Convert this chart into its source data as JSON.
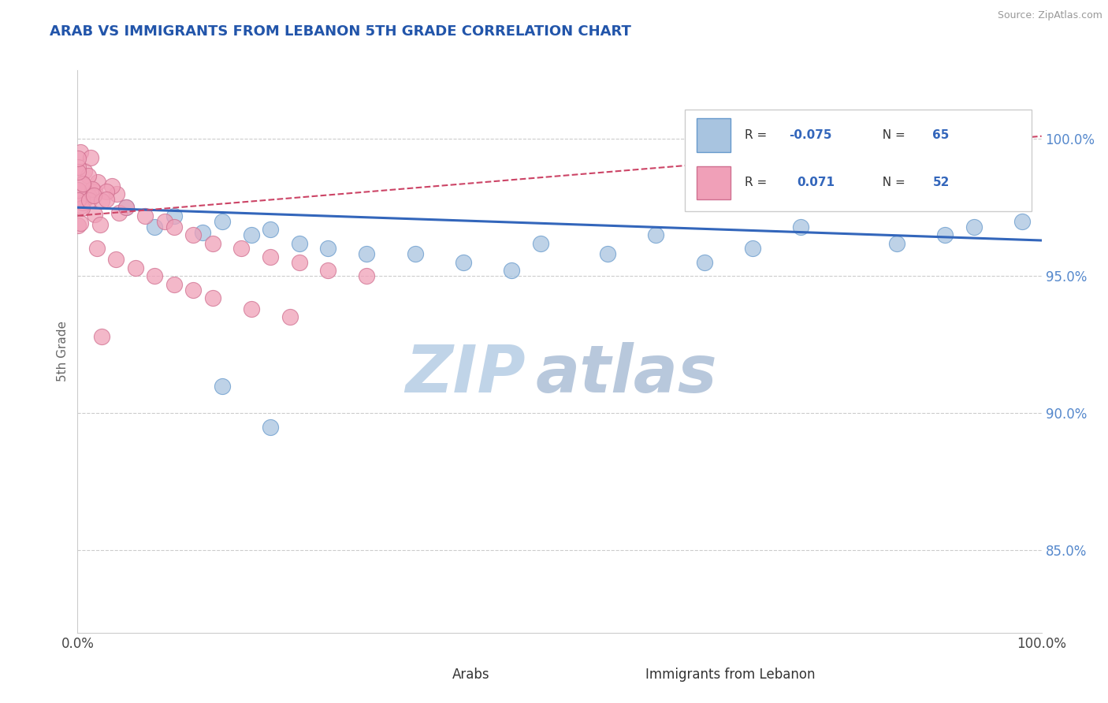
{
  "title": "ARAB VS IMMIGRANTS FROM LEBANON 5TH GRADE CORRELATION CHART",
  "source": "Source: ZipAtlas.com",
  "ylabel": "5th Grade",
  "xlim": [
    0.0,
    1.0
  ],
  "ylim": [
    0.82,
    1.025
  ],
  "ytick_vals": [
    0.85,
    0.9,
    0.95,
    1.0
  ],
  "ytick_labels": [
    "85.0%",
    "90.0%",
    "95.0%",
    "100.0%"
  ],
  "xtick_vals": [
    0.0,
    1.0
  ],
  "xtick_labels": [
    "0.0%",
    "100.0%"
  ],
  "arab_color": "#a8c4e0",
  "arab_edge_color": "#6699cc",
  "leb_color": "#f0a0b8",
  "leb_edge_color": "#d07090",
  "trend_arab_color": "#3366bb",
  "trend_leb_color": "#cc4466",
  "right_axis_color": "#5588cc",
  "watermark_zip_color": "#c0d4e8",
  "watermark_atlas_color": "#b8c8dc",
  "title_color": "#2255aa",
  "background_color": "#ffffff",
  "legend_r_arab": "R = ",
  "legend_v_arab": "-0.075",
  "legend_n_arab": "N = 65",
  "legend_r_leb": "R =  ",
  "legend_v_leb": "0.071",
  "legend_n_leb": "N = 52",
  "arab_trend_x0": 0.0,
  "arab_trend_y0": 0.975,
  "arab_trend_x1": 1.0,
  "arab_trend_y1": 0.963,
  "leb_trend_x0": 0.0,
  "leb_trend_y0": 0.972,
  "leb_trend_x1": 1.0,
  "leb_trend_y1": 1.001
}
